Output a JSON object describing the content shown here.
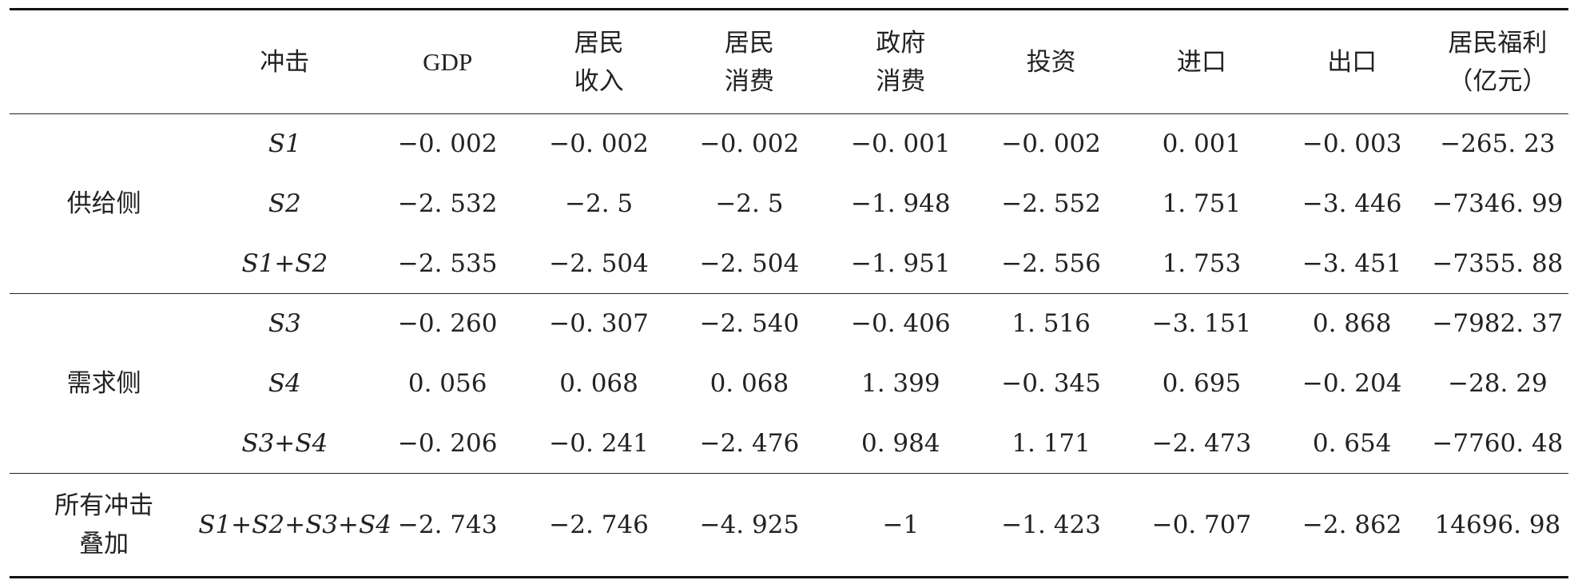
{
  "headers": {
    "group": "",
    "shock": "冲击",
    "gdp": "GDP",
    "income_1": "居民",
    "income_2": "收入",
    "consumption_1": "居民",
    "consumption_2": "消费",
    "gov_1": "政府",
    "gov_2": "消费",
    "investment": "投资",
    "imports": "进口",
    "exports": "出口",
    "welfare_1": "居民福利",
    "welfare_2": "（亿元）"
  },
  "groups": {
    "supply": {
      "label": "供给侧",
      "rows": [
        {
          "shock": "S1",
          "gdp": "−0. 002",
          "income": "−0. 002",
          "consumption": "−0. 002",
          "gov": "−0. 001",
          "investment": "−0. 002",
          "imports": "0. 001",
          "exports": "−0. 003",
          "welfare": "−265. 23"
        },
        {
          "shock": "S2",
          "gdp": "−2. 532",
          "income": "−2. 5",
          "consumption": "−2. 5",
          "gov": "−1. 948",
          "investment": "−2. 552",
          "imports": "1. 751",
          "exports": "−3. 446",
          "welfare": "−7346. 99"
        },
        {
          "shock": "S1+S2",
          "gdp": "−2. 535",
          "income": "−2. 504",
          "consumption": "−2. 504",
          "gov": "−1. 951",
          "investment": "−2. 556",
          "imports": "1. 753",
          "exports": "−3. 451",
          "welfare": "−7355. 88"
        }
      ]
    },
    "demand": {
      "label": "需求侧",
      "rows": [
        {
          "shock": "S3",
          "gdp": "−0. 260",
          "income": "−0. 307",
          "consumption": "−2. 540",
          "gov": "−0. 406",
          "investment": "1. 516",
          "imports": "−3. 151",
          "exports": "0. 868",
          "welfare": "−7982. 37"
        },
        {
          "shock": "S4",
          "gdp": "0. 056",
          "income": "0. 068",
          "consumption": "0. 068",
          "gov": "1. 399",
          "investment": "−0. 345",
          "imports": "0. 695",
          "exports": "−0. 204",
          "welfare": "−28. 29"
        },
        {
          "shock": "S3+S4",
          "gdp": "−0. 206",
          "income": "−0. 241",
          "consumption": "−2. 476",
          "gov": "0. 984",
          "investment": "1. 171",
          "imports": "−2. 473",
          "exports": "0. 654",
          "welfare": "−7760. 48"
        }
      ]
    },
    "all": {
      "label_1": "所有冲击",
      "label_2": "叠加",
      "rows": [
        {
          "shock": "S1+S2+S3+S4",
          "gdp": "−2. 743",
          "income": "−2. 746",
          "consumption": "−4. 925",
          "gov": "−1",
          "investment": "−1. 423",
          "imports": "−0. 707",
          "exports": "−2. 862",
          "welfare": "14696. 98"
        }
      ]
    }
  }
}
